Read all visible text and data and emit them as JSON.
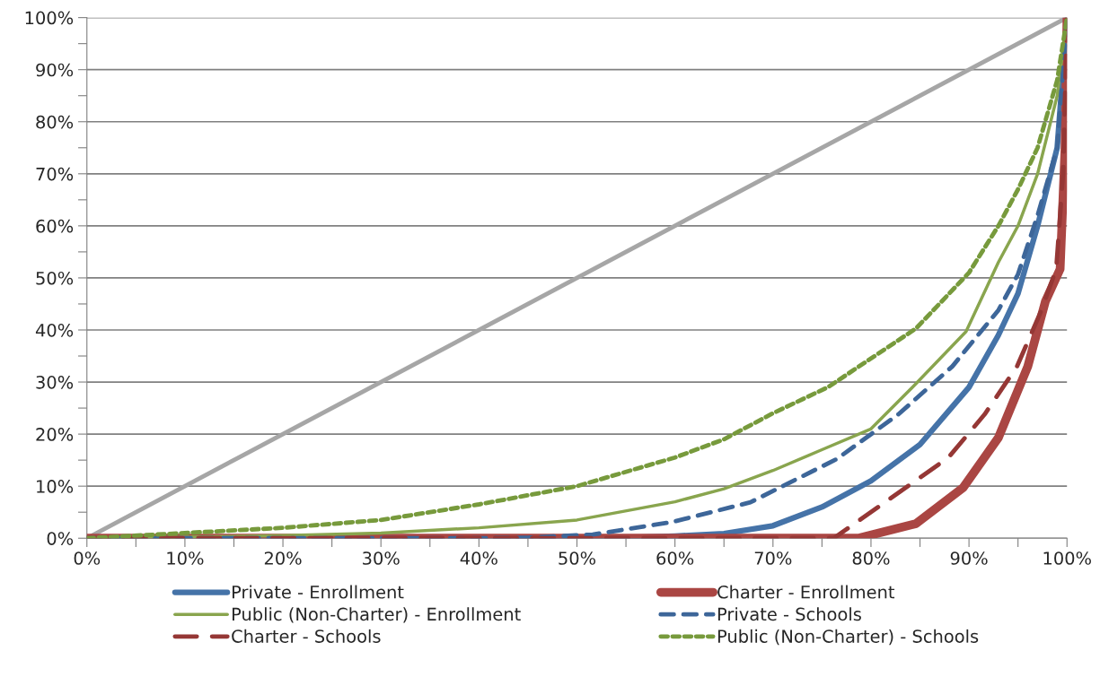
{
  "chart_data": {
    "type": "line",
    "xlim": [
      0,
      100
    ],
    "ylim": [
      0,
      100
    ],
    "xticks": [
      {
        "value": 0,
        "label": "0%"
      },
      {
        "value": 5,
        "label": null
      },
      {
        "value": 10,
        "label": "10%"
      },
      {
        "value": 15,
        "label": null
      },
      {
        "value": 20,
        "label": "20%"
      },
      {
        "value": 25,
        "label": null
      },
      {
        "value": 30,
        "label": "30%"
      },
      {
        "value": 35,
        "label": null
      },
      {
        "value": 40,
        "label": "40%"
      },
      {
        "value": 45,
        "label": null
      },
      {
        "value": 50,
        "label": "50%"
      },
      {
        "value": 55,
        "label": null
      },
      {
        "value": 60,
        "label": "60%"
      },
      {
        "value": 65,
        "label": null
      },
      {
        "value": 70,
        "label": "70%"
      },
      {
        "value": 75,
        "label": null
      },
      {
        "value": 80,
        "label": "80%"
      },
      {
        "value": 85,
        "label": null
      },
      {
        "value": 90,
        "label": "90%"
      },
      {
        "value": 95,
        "label": null
      },
      {
        "value": 100,
        "label": "100%"
      }
    ],
    "yticks": [
      {
        "value": 0,
        "label": "0%"
      },
      {
        "value": 5,
        "label": null
      },
      {
        "value": 10,
        "label": "10%"
      },
      {
        "value": 15,
        "label": null
      },
      {
        "value": 20,
        "label": "20%"
      },
      {
        "value": 25,
        "label": null
      },
      {
        "value": 30,
        "label": "30%"
      },
      {
        "value": 35,
        "label": null
      },
      {
        "value": 40,
        "label": "40%"
      },
      {
        "value": 45,
        "label": null
      },
      {
        "value": 50,
        "label": "50%"
      },
      {
        "value": 55,
        "label": null
      },
      {
        "value": 60,
        "label": "60%"
      },
      {
        "value": 65,
        "label": null
      },
      {
        "value": 70,
        "label": "70%"
      },
      {
        "value": 75,
        "label": null
      },
      {
        "value": 80,
        "label": "80%"
      },
      {
        "value": 85,
        "label": null
      },
      {
        "value": 90,
        "label": "90%"
      },
      {
        "value": 95,
        "label": null
      },
      {
        "value": 100,
        "label": "100%"
      }
    ],
    "grid": "y",
    "legend": "bottom",
    "marker": "none",
    "series": [
      {
        "color": "#a6a6a6",
        "line_style": "solid",
        "x": [
          0,
          100
        ],
        "values": [
          0,
          100
        ]
      },
      {
        "name": "Private - Enrollment",
        "color": "#4573a8",
        "line_style": "solid",
        "x": [
          0,
          50,
          55,
          60,
          65,
          70,
          75,
          80,
          85,
          90,
          93,
          95,
          97,
          99,
          100
        ],
        "values": [
          0,
          0,
          0.1,
          0.4,
          0.9,
          2.4,
          6,
          11,
          18,
          29,
          39,
          47,
          60,
          75,
          100
        ]
      },
      {
        "name": "Charter - Enrollment",
        "color": "#aa4643",
        "line_style": "solid",
        "x": [
          0,
          78.7,
          84.6,
          89.4,
          93,
          96,
          97.8,
          99.3,
          99.8,
          100
        ],
        "values": [
          0,
          0,
          2.8,
          9.7,
          19.3,
          33,
          45.5,
          51.7,
          75,
          100
        ]
      },
      {
        "name": "Public (Non-Charter) - Enrollment",
        "color": "#89a54e",
        "line_style": "solid",
        "x": [
          0,
          10,
          20,
          30,
          40,
          50,
          60,
          65,
          70,
          75,
          80,
          84.6,
          89.7,
          93,
          95,
          97,
          99,
          100
        ],
        "values": [
          0,
          0.2,
          0.5,
          1,
          2,
          3.5,
          7,
          9.5,
          13,
          17,
          21,
          29.7,
          39.7,
          53,
          60,
          70,
          85,
          100
        ]
      },
      {
        "name": "Private - Schools",
        "color": "#3d6699",
        "line_style": "dashed",
        "x": [
          0,
          40,
          45,
          51.6,
          59.7,
          67.7,
          76.5,
          82.8,
          88.3,
          93,
          95,
          97,
          99,
          100
        ],
        "values": [
          0,
          0,
          0.1,
          0.7,
          3.1,
          6.9,
          15.2,
          23.8,
          33,
          43.8,
          50.7,
          62,
          75,
          100
        ]
      },
      {
        "name": "Charter - Schools",
        "color": "#953735",
        "line_style": "longdash",
        "x": [
          0,
          76.2,
          80.9,
          87.9,
          91.6,
          94.9,
          97.3,
          98.9,
          99.6,
          100
        ],
        "values": [
          0,
          0,
          6.2,
          15.5,
          23.8,
          33,
          43.4,
          51.7,
          70,
          100
        ]
      },
      {
        "name": "Public (Non-Charter) - Schools",
        "color": "#779a3c",
        "line_style": "dotted",
        "x": [
          0,
          10,
          20,
          30,
          40,
          50,
          60,
          65,
          70,
          75.6,
          84.6,
          90,
          93,
          95,
          97,
          99,
          100
        ],
        "values": [
          0,
          1,
          2,
          3.5,
          6.5,
          10,
          15.5,
          19,
          24,
          29,
          40.3,
          51,
          60,
          67,
          75,
          88,
          100
        ]
      }
    ]
  }
}
